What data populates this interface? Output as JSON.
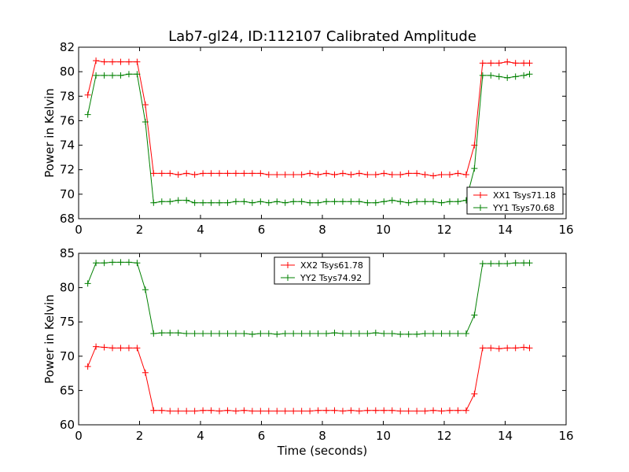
{
  "chart_data": {
    "title": "Lab7-gl24, ID:112107 Calibrated Amplitude",
    "xlabel": "Time (seconds)",
    "panels": [
      {
        "type": "line",
        "ylabel": "Power in Kelvin",
        "xlim": [
          0,
          16
        ],
        "ylim": [
          68,
          82
        ],
        "xticks": [
          0,
          2,
          4,
          6,
          8,
          10,
          12,
          14,
          16
        ],
        "yticks": [
          68,
          70,
          72,
          74,
          76,
          78,
          80,
          82
        ],
        "legend_position": "lower-right",
        "x": [
          0.3,
          0.57,
          0.84,
          1.11,
          1.38,
          1.65,
          1.92,
          2.19,
          2.46,
          2.73,
          3.0,
          3.27,
          3.54,
          3.81,
          4.08,
          4.35,
          4.62,
          4.89,
          5.16,
          5.43,
          5.7,
          5.97,
          6.24,
          6.51,
          6.78,
          7.05,
          7.32,
          7.59,
          7.86,
          8.13,
          8.4,
          8.67,
          8.94,
          9.21,
          9.48,
          9.75,
          10.02,
          10.29,
          10.56,
          10.83,
          11.1,
          11.37,
          11.64,
          11.91,
          12.18,
          12.45,
          12.72,
          12.99,
          13.26,
          13.53,
          13.8,
          14.07,
          14.34,
          14.61,
          14.8
        ],
        "series": [
          {
            "name": "XX1 Tsys71.18",
            "color": "#ff0000",
            "values": [
              78.1,
              80.9,
              80.8,
              80.8,
              80.8,
              80.8,
              80.8,
              77.3,
              71.7,
              71.7,
              71.7,
              71.6,
              71.7,
              71.6,
              71.7,
              71.7,
              71.7,
              71.7,
              71.7,
              71.7,
              71.7,
              71.7,
              71.6,
              71.6,
              71.6,
              71.6,
              71.6,
              71.7,
              71.6,
              71.7,
              71.6,
              71.7,
              71.6,
              71.7,
              71.6,
              71.6,
              71.7,
              71.6,
              71.6,
              71.7,
              71.7,
              71.6,
              71.5,
              71.6,
              71.6,
              71.7,
              71.6,
              74.0,
              80.7,
              80.7,
              80.7,
              80.8,
              80.7,
              80.7,
              80.7
            ]
          },
          {
            "name": "YY1 Tsys70.68",
            "color": "#008000",
            "values": [
              76.5,
              79.7,
              79.7,
              79.7,
              79.7,
              79.8,
              79.8,
              75.9,
              69.3,
              69.4,
              69.4,
              69.5,
              69.5,
              69.3,
              69.3,
              69.3,
              69.3,
              69.3,
              69.4,
              69.4,
              69.3,
              69.4,
              69.3,
              69.4,
              69.3,
              69.4,
              69.4,
              69.3,
              69.3,
              69.4,
              69.4,
              69.4,
              69.4,
              69.4,
              69.3,
              69.3,
              69.4,
              69.5,
              69.4,
              69.3,
              69.4,
              69.4,
              69.4,
              69.3,
              69.4,
              69.4,
              69.5,
              72.1,
              79.7,
              79.7,
              79.6,
              79.5,
              79.6,
              79.7,
              79.8
            ]
          }
        ]
      },
      {
        "type": "line",
        "ylabel": "Power in Kelvin",
        "xlabel": "Time (seconds)",
        "xlim": [
          0,
          16
        ],
        "ylim": [
          60,
          85
        ],
        "xticks": [
          0,
          2,
          4,
          6,
          8,
          10,
          12,
          14,
          16
        ],
        "yticks": [
          60,
          65,
          70,
          75,
          80,
          85
        ],
        "legend_position": "upper-center",
        "x": [
          0.3,
          0.57,
          0.84,
          1.11,
          1.38,
          1.65,
          1.92,
          2.19,
          2.46,
          2.73,
          3.0,
          3.27,
          3.54,
          3.81,
          4.08,
          4.35,
          4.62,
          4.89,
          5.16,
          5.43,
          5.7,
          5.97,
          6.24,
          6.51,
          6.78,
          7.05,
          7.32,
          7.59,
          7.86,
          8.13,
          8.4,
          8.67,
          8.94,
          9.21,
          9.48,
          9.75,
          10.02,
          10.29,
          10.56,
          10.83,
          11.1,
          11.37,
          11.64,
          11.91,
          12.18,
          12.45,
          12.72,
          12.99,
          13.26,
          13.53,
          13.8,
          14.07,
          14.34,
          14.61,
          14.8
        ],
        "series": [
          {
            "name": "XX2 Tsys61.78",
            "color": "#ff0000",
            "values": [
              68.5,
              71.4,
              71.3,
              71.2,
              71.2,
              71.2,
              71.2,
              67.6,
              62.1,
              62.1,
              62.0,
              62.0,
              62.0,
              62.0,
              62.1,
              62.1,
              62.0,
              62.1,
              62.0,
              62.1,
              62.0,
              62.0,
              62.0,
              62.0,
              62.0,
              62.0,
              62.0,
              62.0,
              62.1,
              62.1,
              62.1,
              62.0,
              62.1,
              62.0,
              62.1,
              62.1,
              62.1,
              62.1,
              62.0,
              62.0,
              62.0,
              62.0,
              62.1,
              62.0,
              62.1,
              62.1,
              62.1,
              64.5,
              71.2,
              71.2,
              71.1,
              71.2,
              71.2,
              71.3,
              71.2
            ]
          },
          {
            "name": "YY2 Tsys74.92",
            "color": "#008000",
            "values": [
              80.6,
              83.6,
              83.6,
              83.7,
              83.7,
              83.7,
              83.6,
              79.7,
              73.3,
              73.4,
              73.4,
              73.4,
              73.3,
              73.3,
              73.3,
              73.3,
              73.3,
              73.3,
              73.3,
              73.3,
              73.2,
              73.3,
              73.3,
              73.2,
              73.3,
              73.3,
              73.3,
              73.3,
              73.3,
              73.3,
              73.4,
              73.3,
              73.3,
              73.3,
              73.3,
              73.4,
              73.3,
              73.3,
              73.2,
              73.2,
              73.2,
              73.3,
              73.3,
              73.3,
              73.3,
              73.3,
              73.3,
              76.0,
              83.5,
              83.5,
              83.5,
              83.5,
              83.6,
              83.6,
              83.6
            ]
          }
        ]
      }
    ]
  }
}
